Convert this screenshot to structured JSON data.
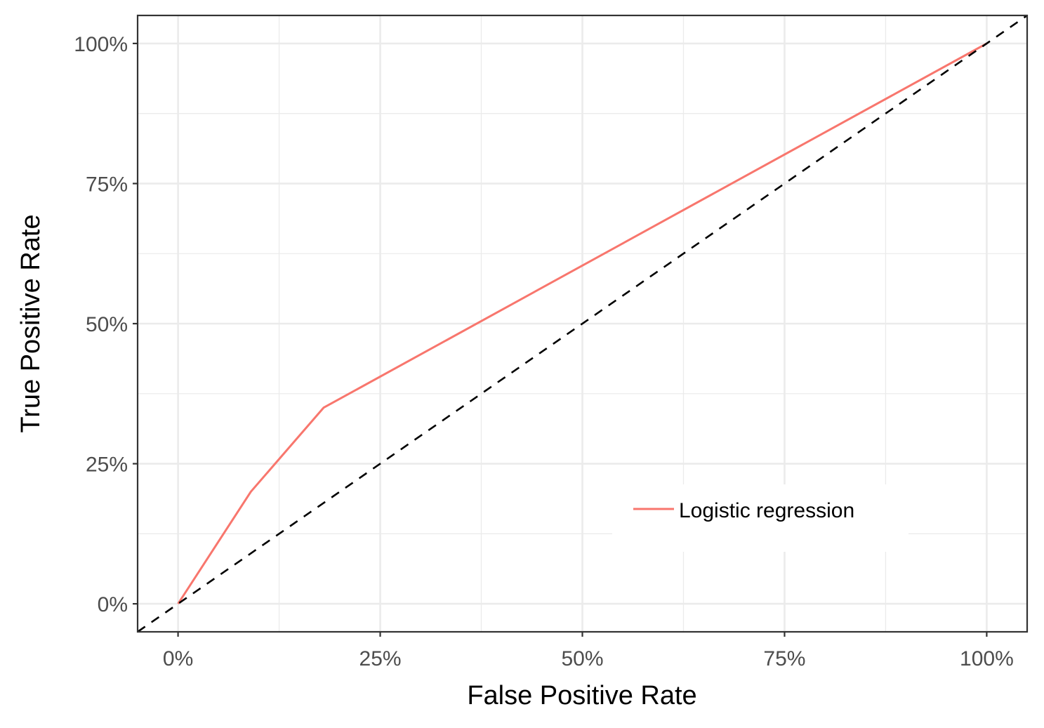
{
  "chart_data": {
    "type": "line",
    "xlabel": "False Positive Rate",
    "ylabel": "True Positive Rate",
    "xlim": [
      -0.05,
      1.05
    ],
    "ylim": [
      -0.05,
      1.05
    ],
    "x_ticks": [
      0,
      0.25,
      0.5,
      0.75,
      1.0
    ],
    "x_tick_labels": [
      "0%",
      "25%",
      "50%",
      "75%",
      "100%"
    ],
    "y_ticks": [
      0,
      0.25,
      0.5,
      0.75,
      1.0
    ],
    "y_tick_labels": [
      "0%",
      "25%",
      "50%",
      "75%",
      "100%"
    ],
    "grid": true,
    "legend_position": "bottom-right",
    "series": [
      {
        "name": "Logistic regression",
        "color": "#F8766D",
        "x": [
          0,
          0.09,
          0.18,
          1.0
        ],
        "y": [
          0,
          0.2,
          0.35,
          1.0
        ]
      }
    ],
    "reference_line": {
      "style": "dashed",
      "color": "#000000",
      "intercept": 0,
      "slope": 1
    }
  }
}
